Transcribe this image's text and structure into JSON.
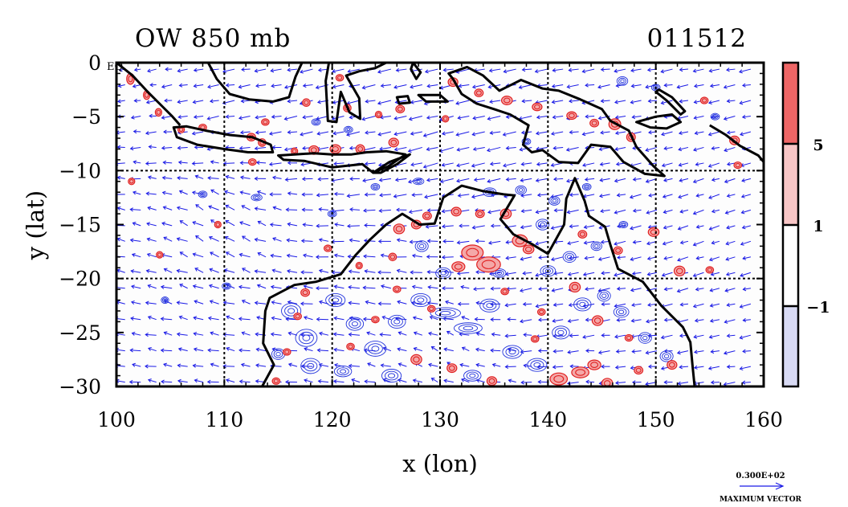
{
  "title": "OW 850 mb",
  "time_stamp": "011512",
  "eq_label": "EQ",
  "x_axis": {
    "label": "x (lon)",
    "ticks": [
      "100",
      "110",
      "120",
      "130",
      "140",
      "150",
      "160"
    ],
    "range": [
      100,
      160
    ]
  },
  "y_axis": {
    "label": "y (lat)",
    "ticks": [
      "0",
      "−5",
      "−10",
      "−15",
      "−20",
      "−25",
      "−30"
    ],
    "range": [
      -30,
      0
    ]
  },
  "grid_lines": {
    "lon": [
      110,
      120,
      130,
      140,
      150
    ],
    "lat": [
      -10,
      -20
    ]
  },
  "colorbar": {
    "labels": [
      "5",
      "1",
      "−1"
    ],
    "levels": [
      5,
      1,
      -1
    ],
    "colors": [
      "#ee6666",
      "#f8c6c6",
      "#ffffff",
      "#d8daf4"
    ]
  },
  "vector_legend": {
    "value": "0.300E+02",
    "caption": "MAXIMUM VECTOR"
  },
  "colors": {
    "coast": "#000000",
    "vector": "#1a1ae6",
    "positive_contour": "#e02020",
    "negative_contour": "#2233dd",
    "positive_fill": "#f4a8a8"
  },
  "coastlines": [
    {
      "name": "sumatra",
      "points": [
        [
          100.0,
          0.0
        ],
        [
          101.5,
          -1.2
        ],
        [
          102.8,
          -2.6
        ],
        [
          104.0,
          -3.8
        ],
        [
          105.2,
          -5.0
        ],
        [
          105.9,
          -5.8
        ]
      ],
      "closed": false
    },
    {
      "name": "java",
      "points": [
        [
          105.3,
          -6.0
        ],
        [
          106.5,
          -5.9
        ],
        [
          108.3,
          -6.3
        ],
        [
          110.5,
          -6.7
        ],
        [
          112.6,
          -6.9
        ],
        [
          114.3,
          -7.6
        ],
        [
          114.5,
          -8.3
        ],
        [
          112.2,
          -8.3
        ],
        [
          110.0,
          -8.0
        ],
        [
          107.5,
          -7.6
        ],
        [
          105.6,
          -6.9
        ]
      ],
      "closed": true
    },
    {
      "name": "nusa-tenggara",
      "points": [
        [
          115.0,
          -8.6
        ],
        [
          116.5,
          -8.5
        ],
        [
          118.3,
          -8.4
        ],
        [
          120.0,
          -8.5
        ],
        [
          121.8,
          -8.5
        ],
        [
          123.2,
          -8.3
        ],
        [
          125.0,
          -8.2
        ],
        [
          126.8,
          -8.5
        ],
        [
          125.2,
          -9.6
        ],
        [
          123.8,
          -10.2
        ],
        [
          122.8,
          -9.4
        ],
        [
          120.0,
          -9.7
        ],
        [
          117.4,
          -9.1
        ],
        [
          115.5,
          -9.0
        ]
      ],
      "closed": true
    },
    {
      "name": "borneo",
      "points": [
        [
          108.5,
          0.0
        ],
        [
          109.3,
          -1.5
        ],
        [
          110.5,
          -2.9
        ],
        [
          112.3,
          -3.4
        ],
        [
          114.5,
          -3.6
        ],
        [
          116.0,
          -3.2
        ],
        [
          116.6,
          -1.3
        ],
        [
          117.2,
          0.0
        ]
      ],
      "closed": false
    },
    {
      "name": "sulawesi",
      "points": [
        [
          119.7,
          0.0
        ],
        [
          119.4,
          -1.7
        ],
        [
          119.5,
          -3.5
        ],
        [
          119.6,
          -5.4
        ],
        [
          120.4,
          -5.5
        ],
        [
          120.8,
          -2.7
        ],
        [
          121.6,
          -4.6
        ],
        [
          122.6,
          -5.2
        ],
        [
          122.5,
          -3.3
        ],
        [
          121.3,
          -1.2
        ],
        [
          122.5,
          -0.8
        ],
        [
          124.0,
          -0.5
        ],
        [
          125.0,
          0.0
        ]
      ],
      "closed": false
    },
    {
      "name": "new-guinea",
      "points": [
        [
          130.8,
          -1.0
        ],
        [
          132.5,
          -0.4
        ],
        [
          134.0,
          -1.2
        ],
        [
          135.5,
          -2.6
        ],
        [
          137.5,
          -1.6
        ],
        [
          139.5,
          -2.4
        ],
        [
          141.0,
          -2.6
        ],
        [
          143.0,
          -3.4
        ],
        [
          145.0,
          -4.3
        ],
        [
          145.8,
          -5.4
        ],
        [
          147.5,
          -6.3
        ],
        [
          148.2,
          -7.8
        ],
        [
          149.8,
          -9.6
        ],
        [
          150.8,
          -10.5
        ],
        [
          149.0,
          -10.3
        ],
        [
          147.0,
          -9.2
        ],
        [
          145.8,
          -7.8
        ],
        [
          144.0,
          -7.6
        ],
        [
          142.8,
          -9.3
        ],
        [
          141.0,
          -9.2
        ],
        [
          139.5,
          -8.1
        ],
        [
          138.5,
          -8.3
        ],
        [
          137.7,
          -7.6
        ],
        [
          138.2,
          -5.8
        ],
        [
          136.5,
          -4.8
        ],
        [
          135.0,
          -4.3
        ],
        [
          133.4,
          -3.8
        ],
        [
          132.0,
          -2.9
        ],
        [
          131.2,
          -1.5
        ]
      ],
      "closed": true
    },
    {
      "name": "australia",
      "points": [
        [
          113.5,
          -30.0
        ],
        [
          114.6,
          -28.0
        ],
        [
          113.6,
          -26.0
        ],
        [
          113.8,
          -23.0
        ],
        [
          114.2,
          -21.8
        ],
        [
          116.5,
          -20.6
        ],
        [
          118.5,
          -20.3
        ],
        [
          120.8,
          -19.6
        ],
        [
          122.2,
          -17.8
        ],
        [
          123.5,
          -16.4
        ],
        [
          125.0,
          -15.0
        ],
        [
          126.5,
          -14.0
        ],
        [
          128.1,
          -15.0
        ],
        [
          129.5,
          -14.9
        ],
        [
          130.3,
          -12.5
        ],
        [
          132.0,
          -11.4
        ],
        [
          134.0,
          -11.9
        ],
        [
          135.9,
          -12.2
        ],
        [
          136.9,
          -12.3
        ],
        [
          135.6,
          -14.5
        ],
        [
          136.8,
          -15.9
        ],
        [
          138.5,
          -16.8
        ],
        [
          140.0,
          -17.7
        ],
        [
          141.5,
          -15.0
        ],
        [
          141.7,
          -12.6
        ],
        [
          142.5,
          -10.7
        ],
        [
          143.4,
          -12.8
        ],
        [
          143.8,
          -14.2
        ],
        [
          145.3,
          -15.2
        ],
        [
          145.8,
          -16.9
        ],
        [
          146.5,
          -19.1
        ],
        [
          148.8,
          -20.3
        ],
        [
          150.5,
          -22.5
        ],
        [
          152.5,
          -24.5
        ],
        [
          153.2,
          -25.9
        ],
        [
          153.4,
          -28.0
        ],
        [
          153.6,
          -30.0
        ]
      ],
      "closed": false
    },
    {
      "name": "new-britain",
      "points": [
        [
          148.2,
          -5.5
        ],
        [
          150.0,
          -5.0
        ],
        [
          151.5,
          -4.8
        ],
        [
          152.3,
          -5.5
        ],
        [
          151.0,
          -6.1
        ],
        [
          149.5,
          -6.0
        ]
      ],
      "closed": true
    },
    {
      "name": "new-ireland",
      "points": [
        [
          150.3,
          -2.5
        ],
        [
          151.5,
          -3.2
        ],
        [
          152.7,
          -4.5
        ],
        [
          152.3,
          -4.8
        ],
        [
          151.0,
          -3.5
        ],
        [
          150.0,
          -2.7
        ]
      ],
      "closed": true
    },
    {
      "name": "solomon",
      "points": [
        [
          155.0,
          -5.8
        ],
        [
          156.5,
          -6.7
        ],
        [
          157.8,
          -7.7
        ],
        [
          159.5,
          -8.6
        ],
        [
          160.0,
          -9.2
        ]
      ],
      "closed": false
    },
    {
      "name": "timor",
      "points": [
        [
          123.8,
          -10.2
        ],
        [
          125.3,
          -9.2
        ],
        [
          127.2,
          -8.5
        ],
        [
          126.0,
          -9.4
        ],
        [
          124.5,
          -10.2
        ]
      ],
      "closed": true
    },
    {
      "name": "halmahera",
      "points": [
        [
          127.5,
          0.0
        ],
        [
          128.2,
          -0.9
        ],
        [
          127.8,
          -1.5
        ],
        [
          127.3,
          -0.6
        ]
      ],
      "closed": true
    },
    {
      "name": "seram",
      "points": [
        [
          128.0,
          -3.0
        ],
        [
          130.0,
          -3.0
        ],
        [
          130.7,
          -3.6
        ],
        [
          128.7,
          -3.6
        ]
      ],
      "closed": true
    },
    {
      "name": "buru",
      "points": [
        [
          126.0,
          -3.2
        ],
        [
          127.0,
          -3.1
        ],
        [
          127.2,
          -3.7
        ],
        [
          126.2,
          -3.8
        ]
      ],
      "closed": true
    }
  ],
  "positive_blobs": [
    [
      101.3,
      -1.5,
      0.35,
      0.5
    ],
    [
      102.8,
      -3.0,
      0.3,
      0.4
    ],
    [
      103.9,
      -4.6,
      0.3,
      0.35
    ],
    [
      106.0,
      -6.2,
      0.3,
      0.3
    ],
    [
      108.0,
      -6.0,
      0.35,
      0.3
    ],
    [
      112.5,
      -6.9,
      0.4,
      0.35
    ],
    [
      113.5,
      -7.4,
      0.35,
      0.35
    ],
    [
      116.5,
      -8.2,
      0.3,
      0.3
    ],
    [
      118.3,
      -8.1,
      0.45,
      0.4
    ],
    [
      120.3,
      -8.0,
      0.5,
      0.4
    ],
    [
      122.6,
      -8.0,
      0.4,
      0.4
    ],
    [
      125.7,
      -7.4,
      0.45,
      0.4
    ],
    [
      117.6,
      -3.7,
      0.35,
      0.35
    ],
    [
      120.7,
      -1.4,
      0.35,
      0.3
    ],
    [
      121.4,
      -4.2,
      0.35,
      0.35
    ],
    [
      124.3,
      -4.8,
      0.3,
      0.3
    ],
    [
      126.3,
      -4.3,
      0.4,
      0.35
    ],
    [
      131.2,
      -1.8,
      0.45,
      0.4
    ],
    [
      133.6,
      -2.8,
      0.4,
      0.35
    ],
    [
      136.2,
      -3.5,
      0.5,
      0.4
    ],
    [
      139.0,
      -4.1,
      0.45,
      0.35
    ],
    [
      142.2,
      -4.9,
      0.45,
      0.35
    ],
    [
      144.3,
      -5.6,
      0.4,
      0.35
    ],
    [
      146.2,
      -5.7,
      0.55,
      0.5
    ],
    [
      147.7,
      -6.9,
      0.4,
      0.4
    ],
    [
      157.3,
      -7.2,
      0.45,
      0.4
    ],
    [
      157.6,
      -9.5,
      0.35,
      0.3
    ],
    [
      113.8,
      -5.5,
      0.35,
      0.3
    ],
    [
      112.6,
      -9.2,
      0.35,
      0.3
    ],
    [
      101.4,
      -11.0,
      0.3,
      0.3
    ],
    [
      126.2,
      -15.4,
      0.5,
      0.45
    ],
    [
      127.8,
      -15.0,
      0.45,
      0.4
    ],
    [
      128.8,
      -14.2,
      0.4,
      0.35
    ],
    [
      131.5,
      -13.8,
      0.45,
      0.4
    ],
    [
      133.7,
      -14.0,
      0.4,
      0.35
    ],
    [
      136.1,
      -14.0,
      0.5,
      0.45
    ],
    [
      137.4,
      -16.5,
      0.7,
      0.55
    ],
    [
      138.2,
      -17.3,
      0.5,
      0.4
    ],
    [
      133.0,
      -17.6,
      1.0,
      0.7
    ],
    [
      134.5,
      -18.7,
      1.1,
      0.7
    ],
    [
      131.7,
      -18.9,
      0.6,
      0.45
    ],
    [
      125.6,
      -18.0,
      0.35,
      0.35
    ],
    [
      143.2,
      -15.9,
      0.4,
      0.35
    ],
    [
      146.5,
      -17.4,
      0.4,
      0.35
    ],
    [
      149.8,
      -15.7,
      0.5,
      0.4
    ],
    [
      152.2,
      -19.3,
      0.5,
      0.45
    ],
    [
      142.5,
      -20.8,
      0.5,
      0.45
    ],
    [
      144.6,
      -23.9,
      0.5,
      0.45
    ],
    [
      147.5,
      -25.5,
      0.35,
      0.3
    ],
    [
      139.4,
      -23.1,
      0.35,
      0.3
    ],
    [
      124.0,
      -23.8,
      0.35,
      0.3
    ],
    [
      129.2,
      -22.8,
      0.35,
      0.3
    ],
    [
      121.7,
      -26.3,
      0.35,
      0.3
    ],
    [
      127.8,
      -27.5,
      0.5,
      0.45
    ],
    [
      131.1,
      -28.3,
      0.45,
      0.4
    ],
    [
      134.8,
      -29.5,
      0.45,
      0.4
    ],
    [
      141.0,
      -29.3,
      0.8,
      0.55
    ],
    [
      143.0,
      -28.7,
      0.8,
      0.5
    ],
    [
      144.3,
      -28.0,
      0.6,
      0.45
    ],
    [
      145.5,
      -29.7,
      0.5,
      0.45
    ],
    [
      148.4,
      -28.5,
      0.4,
      0.35
    ],
    [
      151.5,
      -28.0,
      0.45,
      0.4
    ],
    [
      155.0,
      -19.2,
      0.35,
      0.3
    ],
    [
      119.6,
      -17.2,
      0.35,
      0.3
    ],
    [
      117.5,
      -21.3,
      0.4,
      0.35
    ],
    [
      116.8,
      -23.5,
      0.35,
      0.3
    ],
    [
      115.8,
      -26.8,
      0.35,
      0.3
    ],
    [
      114.8,
      -29.5,
      0.35,
      0.3
    ],
    [
      138.8,
      -25.6,
      0.35,
      0.3
    ],
    [
      136.0,
      -21.2,
      0.35,
      0.3
    ],
    [
      126.0,
      -21.0,
      0.35,
      0.3
    ],
    [
      122.5,
      -18.8,
      0.3,
      0.3
    ],
    [
      109.4,
      -15.0,
      0.3,
      0.3
    ],
    [
      104.0,
      -17.8,
      0.3,
      0.3
    ],
    [
      154.5,
      -3.5,
      0.35,
      0.3
    ],
    [
      130.5,
      -5.2,
      0.3,
      0.3
    ]
  ],
  "negative_blobs": [
    [
      116.2,
      -23.0,
      0.9,
      0.7
    ],
    [
      117.6,
      -25.5,
      1.0,
      0.8
    ],
    [
      118.0,
      -28.1,
      0.9,
      0.7
    ],
    [
      120.3,
      -22.0,
      0.9,
      0.6
    ],
    [
      122.1,
      -24.2,
      0.8,
      0.6
    ],
    [
      124.0,
      -26.5,
      1.0,
      0.7
    ],
    [
      126.0,
      -24.0,
      0.8,
      0.6
    ],
    [
      128.2,
      -22.0,
      0.9,
      0.6
    ],
    [
      130.5,
      -23.2,
      1.4,
      0.5
    ],
    [
      132.6,
      -24.6,
      1.3,
      0.5
    ],
    [
      134.6,
      -22.5,
      0.9,
      0.6
    ],
    [
      136.7,
      -26.8,
      0.9,
      0.6
    ],
    [
      139.0,
      -28.0,
      0.9,
      0.6
    ],
    [
      141.2,
      -25.0,
      0.8,
      0.6
    ],
    [
      143.2,
      -22.4,
      0.8,
      0.6
    ],
    [
      145.2,
      -21.6,
      0.6,
      0.5
    ],
    [
      146.8,
      -23.1,
      0.7,
      0.5
    ],
    [
      149.0,
      -25.5,
      0.6,
      0.5
    ],
    [
      151.0,
      -27.2,
      0.6,
      0.5
    ],
    [
      133.0,
      -29.0,
      0.8,
      0.5
    ],
    [
      125.5,
      -29.0,
      0.9,
      0.6
    ],
    [
      121.0,
      -28.6,
      0.8,
      0.5
    ],
    [
      115.0,
      -27.0,
      0.6,
      0.5
    ],
    [
      128.3,
      -17.0,
      0.6,
      0.5
    ],
    [
      130.3,
      -19.5,
      0.7,
      0.5
    ],
    [
      135.5,
      -19.5,
      0.6,
      0.4
    ],
    [
      140.0,
      -19.3,
      0.7,
      0.5
    ],
    [
      142.0,
      -18.0,
      0.6,
      0.5
    ],
    [
      144.5,
      -17.0,
      0.5,
      0.4
    ],
    [
      139.5,
      -15.0,
      0.6,
      0.5
    ],
    [
      140.6,
      -12.8,
      0.5,
      0.4
    ],
    [
      137.5,
      -11.8,
      0.5,
      0.4
    ],
    [
      134.6,
      -12.0,
      0.6,
      0.4
    ],
    [
      128.0,
      -11.0,
      0.5,
      0.3
    ],
    [
      124.0,
      -11.5,
      0.4,
      0.3
    ],
    [
      120.0,
      -14.0,
      0.4,
      0.3
    ],
    [
      113.0,
      -12.5,
      0.5,
      0.3
    ],
    [
      108.0,
      -12.2,
      0.4,
      0.3
    ],
    [
      110.2,
      -20.7,
      0.4,
      0.3
    ],
    [
      104.5,
      -22.0,
      0.35,
      0.3
    ],
    [
      146.9,
      -1.7,
      0.5,
      0.4
    ],
    [
      150.0,
      -2.3,
      0.4,
      0.3
    ],
    [
      155.5,
      -5.0,
      0.4,
      0.3
    ],
    [
      121.5,
      -6.2,
      0.4,
      0.3
    ],
    [
      118.5,
      -5.5,
      0.4,
      0.3
    ],
    [
      138.0,
      -7.3,
      0.4,
      0.3
    ],
    [
      143.6,
      -11.5,
      0.4,
      0.3
    ],
    [
      147.0,
      -15.0,
      0.4,
      0.3
    ]
  ],
  "wind_field": {
    "points": [
      {
        "lon": 100,
        "lat": 0,
        "u": -8,
        "v": -2
      },
      {
        "lon": 110,
        "lat": -5,
        "u": -14,
        "v": -3
      },
      {
        "lon": 120,
        "lat": -5,
        "u": -16,
        "v": -4
      },
      {
        "lon": 130,
        "lat": -8,
        "u": -18,
        "v": -5
      },
      {
        "lon": 110,
        "lat": -15,
        "u": -12,
        "v": 8
      },
      {
        "lon": 125,
        "lat": -20,
        "u": -16,
        "v": 2
      },
      {
        "lon": 140,
        "lat": -20,
        "u": -14,
        "v": -3
      },
      {
        "lon": 155,
        "lat": -15,
        "u": -12,
        "v": -4
      },
      {
        "lon": 130,
        "lat": -27,
        "u": -10,
        "v": 5
      }
    ],
    "units": "m/s"
  }
}
